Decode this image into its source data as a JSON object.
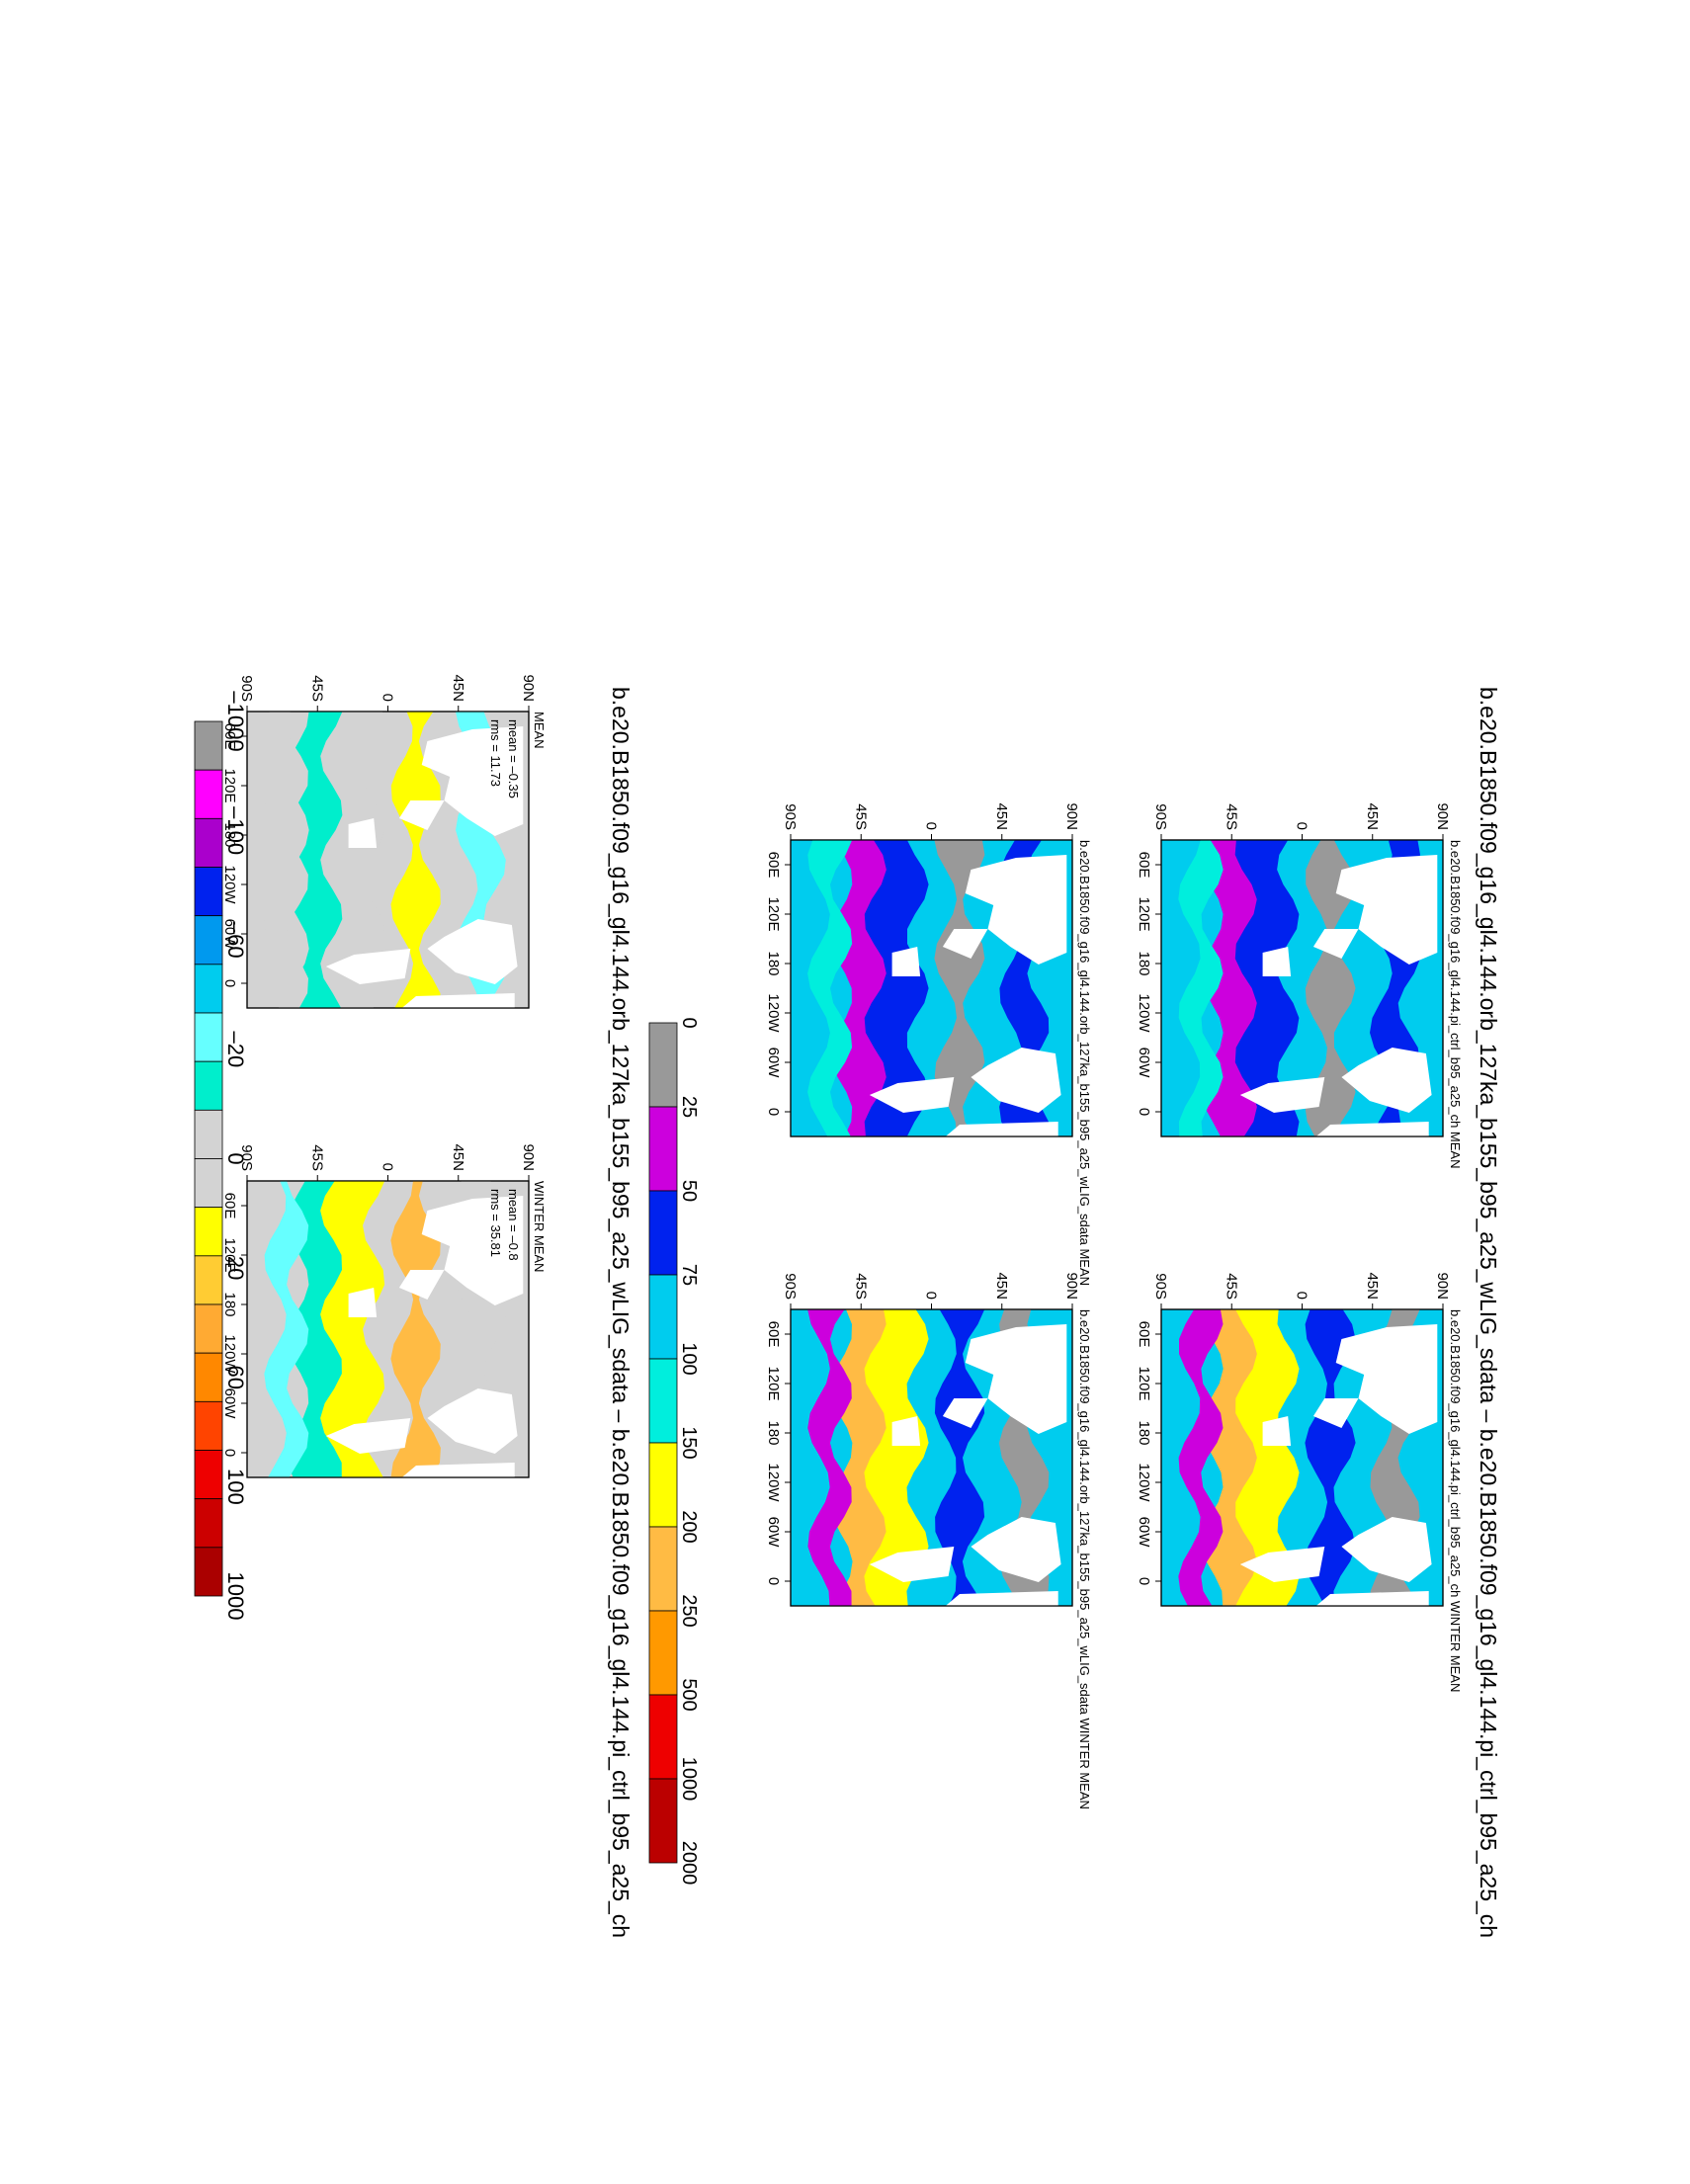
{
  "figure": {
    "top_title": "b.e20.B1850.f09_g16_gl4.144.orb_127ka_b155_b95_a25_wLIG_sdata – b.e20.B1850.f09_g16_gl4.144.pi_ctrl_b95_a25_ch",
    "bottom_title": "b.e20.B1850.f09_g16_gl4.144.orb_127ka_b155_b95_a25_wLIG_sdata – b.e20.B1850.f09_g16_gl4.144.pi_ctrl_b95_a25_ch"
  },
  "axes": {
    "lon_labels": [
      "60E",
      "120E",
      "180",
      "120W",
      "60W",
      "0"
    ],
    "lat_labels": [
      "90N",
      "45N",
      "0",
      "45S",
      "90S"
    ]
  },
  "panels": {
    "ctrl_mean": {
      "title": "b.e20.B1850.f09_g16_gl4.144.pi_ctrl_b95_a25_ch MEAN"
    },
    "ctrl_winter": {
      "title": "b.e20.B1850.f09_g16_gl4.144.pi_ctrl_b95_a25_ch WINTER MEAN"
    },
    "exp_mean": {
      "title": "b.e20.B1850.f09_g16_gl4.144.orb_127ka_b155_b95_a25_wLIG_sdata MEAN"
    },
    "exp_winter": {
      "title": "b.e20.B1850.f09_g16_gl4.144.orb_127ka_b155_b95_a25_wLIG_sdata WINTER MEAN"
    },
    "diff_mean": {
      "title": "MEAN",
      "mean_text": "mean = –0.35",
      "rms_text": "rms = 11.73"
    },
    "diff_winter": {
      "title": "WINTER MEAN",
      "mean_text": "mean = –0.8",
      "rms_text": "rms = 35.81"
    }
  },
  "colorbars": {
    "absolute": {
      "labels": [
        "0",
        "25",
        "50",
        "75",
        "100",
        "150",
        "200",
        "250",
        "500",
        "1000",
        "2000"
      ],
      "colors": [
        "#999999",
        "#cc00dd",
        "#0022ee",
        "#00ccee",
        "#00eedd",
        "#ffff00",
        "#ffbb44",
        "#ff9900",
        "#ee0000",
        "#bb0000"
      ]
    },
    "difference": {
      "labels": [
        "–1000",
        "–100",
        "–60",
        "–20",
        "0",
        "20",
        "60",
        "100",
        "1000"
      ],
      "colors": [
        "#999999",
        "#ff00ff",
        "#aa00cc",
        "#0022ee",
        "#0099ee",
        "#00ccee",
        "#66ffff",
        "#00eecc",
        "#d3d3d3",
        "#d3d3d3",
        "#ffff00",
        "#ffcc33",
        "#ffaa33",
        "#ff8800",
        "#ff4400",
        "#ee0000",
        "#cc0000",
        "#aa0000"
      ]
    }
  },
  "colors": {
    "land": "#ffffff",
    "diff_neutral": "#d3d3d3"
  }
}
